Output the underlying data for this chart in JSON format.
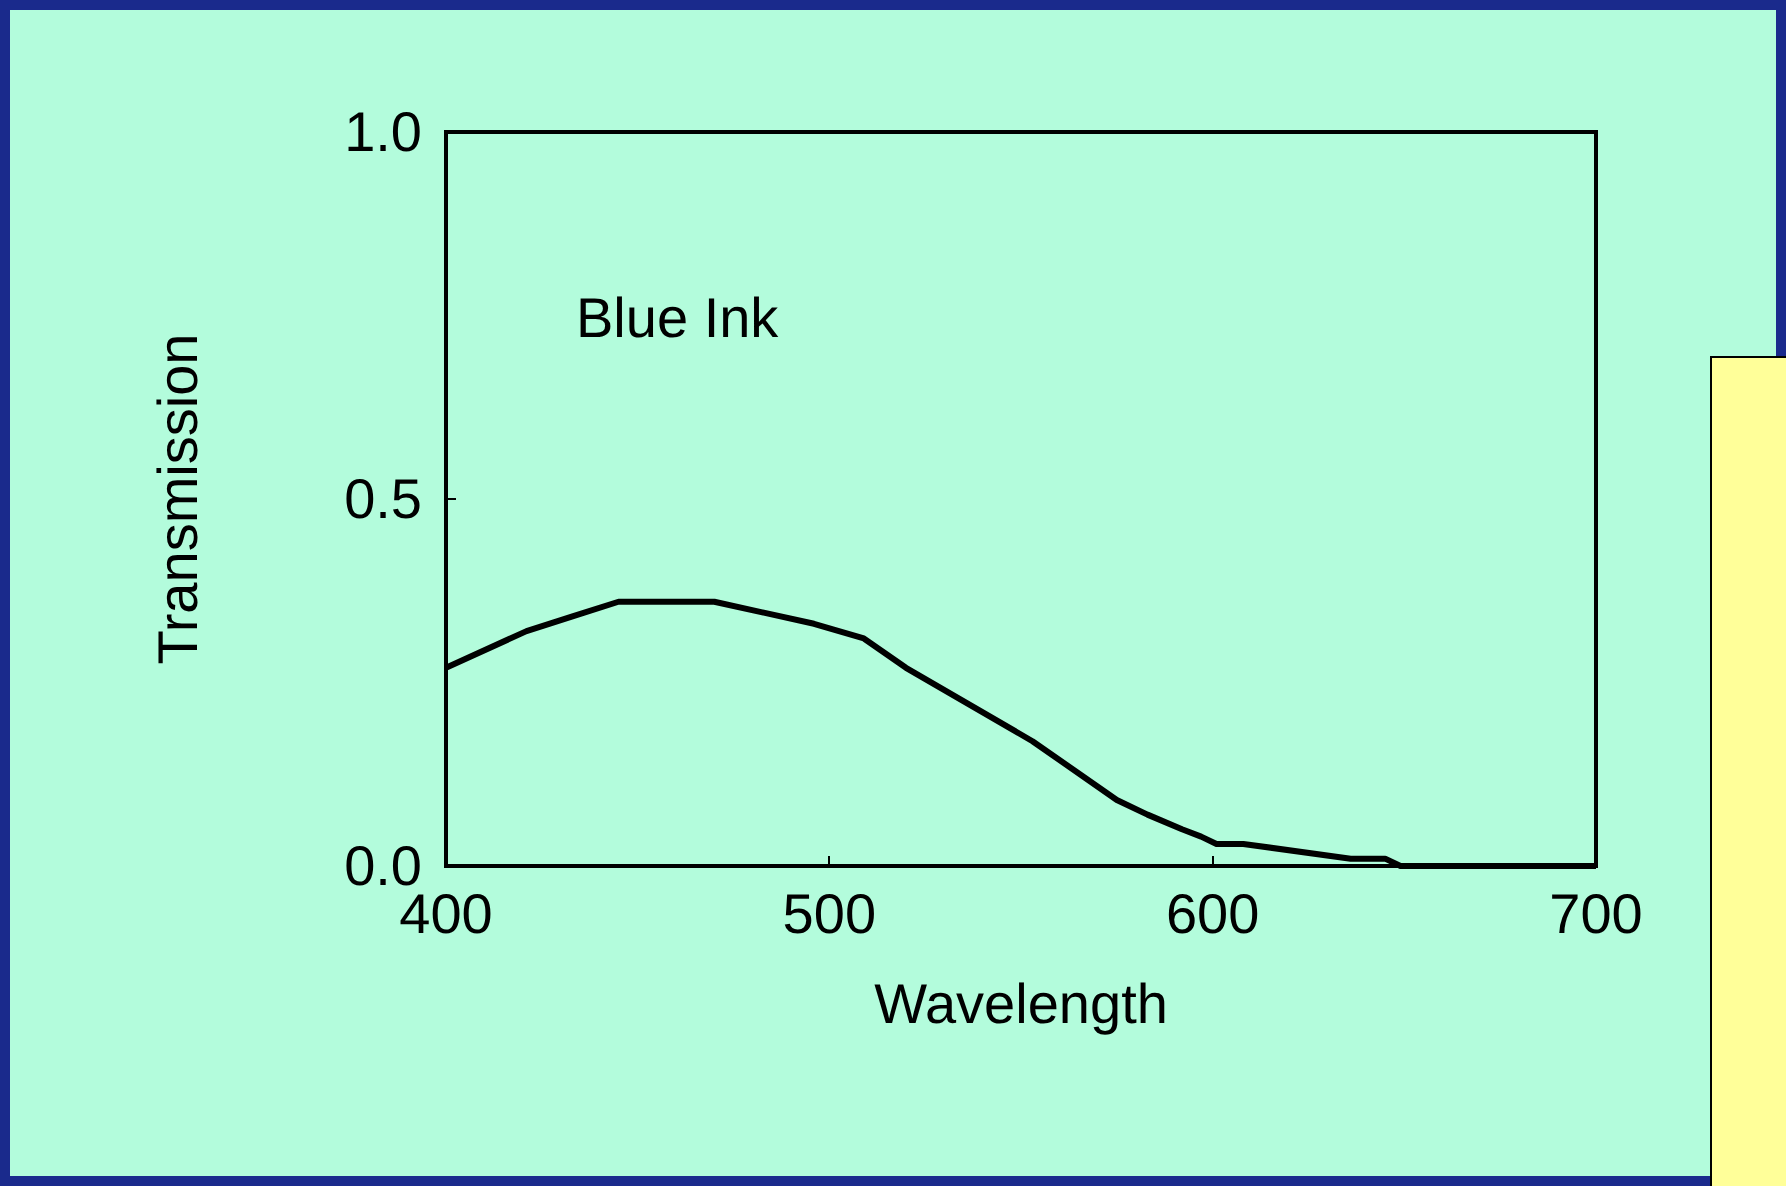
{
  "chart_data": {
    "type": "line",
    "xlabel": "Wavelength",
    "ylabel": "Transmission",
    "annotations": [
      "Blue Ink"
    ],
    "x": [
      400,
      421,
      433,
      445,
      458,
      470,
      496,
      509,
      520,
      553,
      575,
      583,
      592,
      597,
      601,
      608,
      636,
      645,
      649,
      700
    ],
    "series": [
      {
        "color": "#000000",
        "values": [
          0.27,
          0.32,
          0.34,
          0.36,
          0.36,
          0.36,
          0.33,
          0.31,
          0.27,
          0.17,
          0.09,
          0.07,
          0.05,
          0.04,
          0.03,
          0.03,
          0.01,
          0.01,
          0,
          0
        ]
      }
    ],
    "xlim": [
      400,
      700
    ],
    "xticks": [
      400,
      500,
      600,
      700
    ],
    "ylim": [
      0,
      1
    ],
    "yticks": [
      {
        "value": 0,
        "label": "0.0"
      },
      {
        "value": 0.5,
        "label": "0.5"
      },
      {
        "value": 1,
        "label": "1.0"
      }
    ],
    "grid": false,
    "marker": "none",
    "line_style": "solid"
  }
}
